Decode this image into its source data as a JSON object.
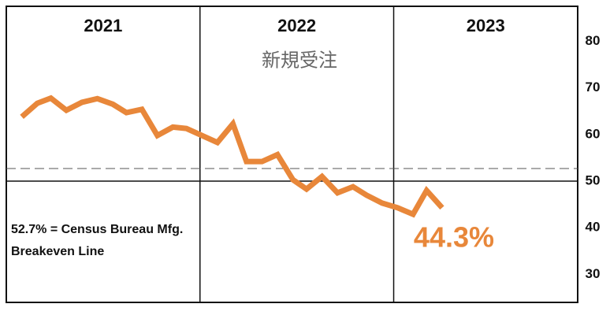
{
  "chart_data": {
    "type": "line",
    "title": "新規受注",
    "x": [
      2021.08,
      2021.16,
      2021.23,
      2021.31,
      2021.39,
      2021.47,
      2021.55,
      2021.62,
      2021.7,
      2021.78,
      2021.86,
      2021.93,
      2022.01,
      2022.09,
      2022.17,
      2022.24,
      2022.32,
      2022.4,
      2022.48,
      2022.55,
      2022.63,
      2022.71,
      2022.79,
      2022.86,
      2022.94,
      2023.02,
      2023.1,
      2023.17,
      2023.25
    ],
    "series": [
      {
        "color": "#e8873a",
        "values": [
          63.8,
          66.7,
          67.8,
          65.2,
          66.9,
          67.7,
          66.5,
          64.7,
          65.4,
          59.8,
          61.6,
          61.3,
          59.8,
          58.3,
          62.3,
          54.2,
          54.2,
          55.7,
          50.3,
          48.3,
          51.0,
          47.5,
          48.8,
          47.0,
          45.3,
          44.3,
          42.9,
          48.0,
          44.3
        ]
      }
    ],
    "last_value_label": "44.3%",
    "xlim": [
      2021,
      2023.95
    ],
    "xticks": [
      {
        "value": 2021.5,
        "label": "2021"
      },
      {
        "value": 2022.5,
        "label": "2022"
      },
      {
        "value": 2023.475,
        "label": "2023"
      }
    ],
    "xgrid": [
      2022,
      2023
    ],
    "ylim": [
      24,
      87.5
    ],
    "yticks": [
      30,
      40,
      50,
      60,
      70,
      80
    ],
    "hline": 50,
    "reference_line": 52.7,
    "annotation": [
      "52.7% = Census Bureau Mfg.",
      "Breakeven Line"
    ]
  }
}
